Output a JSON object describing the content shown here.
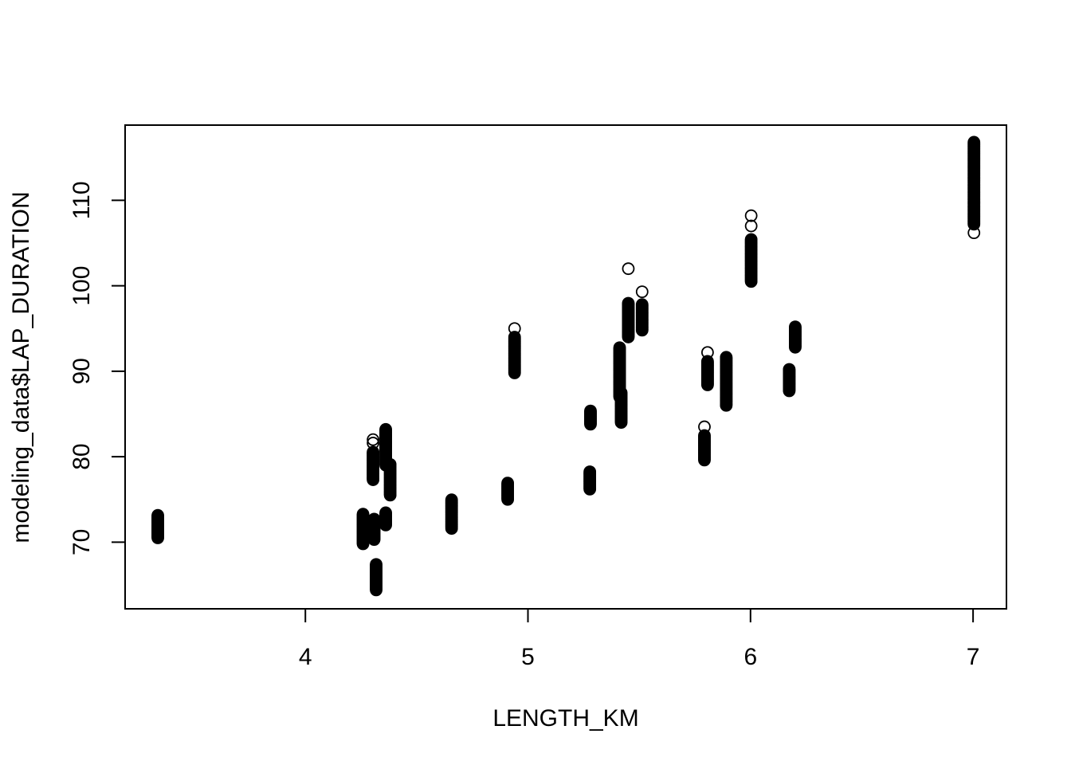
{
  "chart_data": {
    "type": "scatter",
    "title": "",
    "xlabel": "LENGTH_KM",
    "ylabel": "modeling_data$LAP_DURATION",
    "xlim": [
      3.19,
      7.15
    ],
    "ylim": [
      62.2,
      118.8
    ],
    "xticks": [
      "4",
      "5",
      "6",
      "7"
    ],
    "yticks": [
      "70",
      "80",
      "90",
      "100",
      "110"
    ],
    "xtick_values": [
      4,
      5,
      6,
      7
    ],
    "ytick_values": [
      70,
      80,
      90,
      100,
      110
    ],
    "grid": false,
    "legend": "none",
    "marker": "open-circle",
    "color": "#000000",
    "clusters": [
      {
        "x": 3.337,
        "ymin": 70.5,
        "ymax": 73.2,
        "outliers": []
      },
      {
        "x": 4.259,
        "ymin": 69.8,
        "ymax": 73.3,
        "outliers": []
      },
      {
        "x": 4.304,
        "ymin": 77.3,
        "ymax": 80.6,
        "outliers": [
          81.6,
          82.0
        ]
      },
      {
        "x": 4.309,
        "ymin": 70.3,
        "ymax": 72.8,
        "outliers": []
      },
      {
        "x": 4.318,
        "ymin": 64.4,
        "ymax": 67.5,
        "outliers": []
      },
      {
        "x": 4.361,
        "ymin": 79.0,
        "ymax": 83.3,
        "outliers": []
      },
      {
        "x": 4.361,
        "ymin": 72.0,
        "ymax": 73.5,
        "outliers": []
      },
      {
        "x": 4.381,
        "ymin": 75.5,
        "ymax": 79.2,
        "outliers": []
      },
      {
        "x": 4.657,
        "ymin": 71.6,
        "ymax": 75.0,
        "outliers": []
      },
      {
        "x": 4.909,
        "ymin": 75.0,
        "ymax": 77.0,
        "outliers": []
      },
      {
        "x": 4.94,
        "ymin": 89.8,
        "ymax": 94.0,
        "outliers": [
          95.0
        ]
      },
      {
        "x": 5.278,
        "ymin": 76.2,
        "ymax": 78.3,
        "outliers": []
      },
      {
        "x": 5.281,
        "ymin": 83.8,
        "ymax": 85.4,
        "outliers": []
      },
      {
        "x": 5.412,
        "ymin": 87.0,
        "ymax": 92.8,
        "outliers": []
      },
      {
        "x": 5.419,
        "ymin": 84.0,
        "ymax": 87.5,
        "outliers": []
      },
      {
        "x": 5.451,
        "ymin": 94.0,
        "ymax": 98.0,
        "outliers": [
          102.0
        ]
      },
      {
        "x": 5.513,
        "ymin": 94.8,
        "ymax": 97.8,
        "outliers": [
          99.3
        ]
      },
      {
        "x": 5.793,
        "ymin": 79.6,
        "ymax": 82.5,
        "outliers": [
          83.5
        ]
      },
      {
        "x": 5.807,
        "ymin": 88.4,
        "ymax": 91.2,
        "outliers": [
          92.2
        ]
      },
      {
        "x": 5.891,
        "ymin": 86.0,
        "ymax": 91.7,
        "outliers": []
      },
      {
        "x": 6.003,
        "ymin": 100.5,
        "ymax": 105.5,
        "outliers": [
          107.0,
          108.2
        ]
      },
      {
        "x": 6.174,
        "ymin": 87.7,
        "ymax": 90.3,
        "outliers": []
      },
      {
        "x": 6.201,
        "ymin": 92.8,
        "ymax": 95.2,
        "outliers": []
      },
      {
        "x": 7.004,
        "ymin": 107.2,
        "ymax": 116.8,
        "outliers": [
          106.2
        ]
      }
    ]
  }
}
